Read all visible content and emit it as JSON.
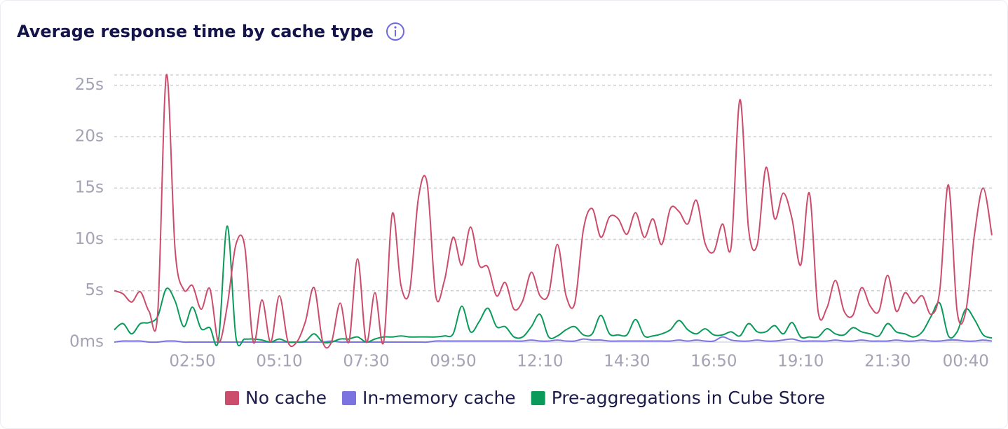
{
  "chart_data": {
    "type": "line",
    "title": "Average response time by cache type",
    "ylim": [
      0,
      26
    ],
    "yticks": [
      {
        "value": 0,
        "label": "0ms"
      },
      {
        "value": 5,
        "label": "5s"
      },
      {
        "value": 10,
        "label": "10s"
      },
      {
        "value": 15,
        "label": "15s"
      },
      {
        "value": 20,
        "label": "20s"
      },
      {
        "value": 25,
        "label": "25s"
      }
    ],
    "grid": true,
    "legend": "bottom",
    "categories": [
      null,
      null,
      null,
      null,
      null,
      null,
      null,
      null,
      null,
      "02:50",
      null,
      null,
      null,
      null,
      null,
      null,
      null,
      null,
      null,
      "05:10",
      null,
      null,
      null,
      null,
      null,
      null,
      null,
      null,
      null,
      "07:30",
      null,
      null,
      null,
      null,
      null,
      null,
      null,
      null,
      null,
      "09:50",
      null,
      null,
      null,
      null,
      null,
      null,
      null,
      null,
      null,
      "12:10",
      null,
      null,
      null,
      null,
      null,
      null,
      null,
      null,
      null,
      "14:30",
      null,
      null,
      null,
      null,
      null,
      null,
      null,
      null,
      null,
      "16:50",
      null,
      null,
      null,
      null,
      null,
      null,
      null,
      null,
      null,
      "19:10",
      null,
      null,
      null,
      null,
      null,
      null,
      null,
      null,
      null,
      "21:30",
      null,
      null,
      null,
      null,
      null,
      null,
      null,
      null,
      "00:40",
      null,
      null,
      null
    ],
    "series": [
      {
        "name": "No cache",
        "color": "#cc4c6c",
        "values": [
          5.0,
          4.7,
          3.9,
          4.9,
          3.0,
          2.8,
          26,
          9,
          5.1,
          5.5,
          3.2,
          5.2,
          0,
          3.5,
          9.5,
          9.4,
          0,
          4.1,
          0,
          4.5,
          0,
          0,
          2,
          5.3,
          0,
          0,
          3.8,
          0,
          8.1,
          0,
          4.8,
          0,
          12.5,
          5.5,
          5,
          14,
          15.5,
          4.5,
          6,
          10.2,
          7.5,
          11.2,
          7.5,
          7.3,
          4.5,
          5.8,
          3.2,
          4.0,
          6.8,
          4.5,
          4.7,
          9.5,
          4.5,
          3.8,
          11,
          13,
          10.2,
          12.2,
          12,
          10.5,
          12.6,
          10.2,
          12,
          9.5,
          13,
          12.7,
          11.5,
          13.8,
          9.6,
          8.8,
          11.5,
          9.3,
          23.6,
          11,
          9.5,
          17,
          12,
          14.5,
          12,
          7.5,
          14.5,
          3,
          3.3,
          6,
          3,
          2.6,
          5.3,
          3.5,
          3,
          6.5,
          3,
          4.8,
          3.8,
          4.5,
          2.7,
          5,
          15.3,
          3,
          3,
          10.5,
          15,
          10.4
        ]
      },
      {
        "name": "In-memory cache",
        "color": "#7a73e0",
        "values": [
          0,
          0.1,
          0.1,
          0.1,
          0,
          0,
          0.1,
          0.1,
          0,
          0,
          0,
          0,
          0,
          0,
          0,
          0,
          0,
          0,
          0,
          0,
          0,
          0,
          0,
          0,
          0,
          0.1,
          0,
          0,
          0,
          0,
          0,
          0,
          0,
          0,
          0,
          0,
          0,
          0.1,
          0.1,
          0.1,
          0.1,
          0.1,
          0.1,
          0.1,
          0.1,
          0.1,
          0.1,
          0.1,
          0.2,
          0.1,
          0.1,
          0.2,
          0.1,
          0.1,
          0.3,
          0.2,
          0.2,
          0.1,
          0.1,
          0.1,
          0.1,
          0.1,
          0.1,
          0.1,
          0.1,
          0.2,
          0.1,
          0.2,
          0.1,
          0.1,
          0.5,
          0.2,
          0.1,
          0.1,
          0.2,
          0.1,
          0.1,
          0.2,
          0.3,
          0.1,
          0.1,
          0.1,
          0.1,
          0.2,
          0.1,
          0.1,
          0.2,
          0.1,
          0.1,
          0.1,
          0.2,
          0.1,
          0.1,
          0.2,
          0.1,
          0.1,
          0.2,
          0.2,
          0.1,
          0.1,
          0.2,
          0.1
        ]
      },
      {
        "name": "Pre-aggregations in Cube Store",
        "color": "#0a9b5a",
        "values": [
          1.2,
          1.8,
          0.8,
          1.8,
          1.9,
          2.5,
          5.2,
          4,
          1.5,
          3.4,
          1.3,
          1.4,
          0.2,
          11.3,
          0.5,
          0.3,
          0.3,
          0.2,
          0,
          0.3,
          0,
          0,
          0.1,
          0.8,
          0,
          0,
          0.3,
          0.3,
          0.5,
          0,
          0.3,
          0.5,
          0.5,
          0.6,
          0.5,
          0.5,
          0.5,
          0.5,
          0.6,
          0.8,
          3.5,
          1,
          2,
          3.3,
          1.5,
          1.5,
          0.5,
          0.5,
          1.5,
          2.7,
          0.5,
          0.6,
          1.2,
          1.5,
          0.7,
          0.8,
          2.6,
          0.8,
          0.7,
          0.7,
          2.2,
          0.6,
          0.6,
          0.8,
          1.2,
          2.1,
          1.2,
          0.8,
          1.3,
          0.7,
          0.7,
          1,
          0.6,
          1.8,
          1,
          1,
          1.6,
          0.8,
          1.9,
          0.5,
          0.5,
          0.5,
          1.3,
          0.8,
          0.7,
          1.4,
          1,
          0.8,
          0.6,
          1.8,
          1,
          0.8,
          0.5,
          1,
          2.5,
          3.8,
          0.6,
          1,
          3.2,
          2.2,
          0.7,
          0.4
        ]
      }
    ]
  }
}
